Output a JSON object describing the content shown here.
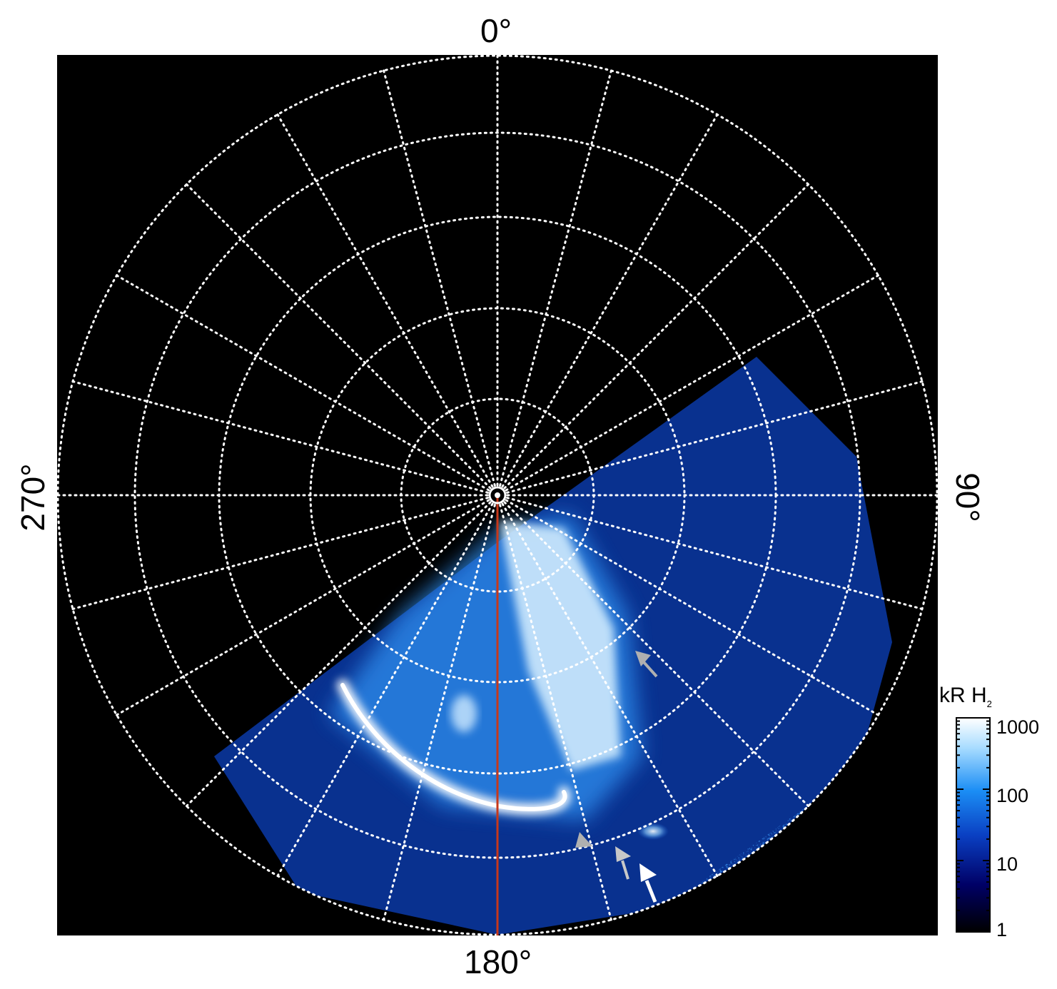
{
  "chart_data": {
    "type": "heatmap",
    "projection": "polar",
    "background": "#000000",
    "longitude_labels": {
      "top": "0°",
      "right": "90°",
      "bottom": "180°",
      "left": "270°"
    },
    "grid": true,
    "grid_color": "#ffffff",
    "meridian_step_deg": 15,
    "colorbar": {
      "title": "kR H",
      "title_subscript": "2",
      "scale": "log",
      "range": [
        1,
        1000
      ],
      "ticks": [
        "1000",
        "100",
        "10",
        "1"
      ],
      "colors": [
        "#000000",
        "#000066",
        "#0a3fc2",
        "#1b8ef5",
        "#a8dcff",
        "#ffffff"
      ]
    },
    "reference_line": {
      "longitude_deg": 180,
      "color": "#c8381a"
    },
    "arrows": [
      {
        "color": "#b0b0b0"
      },
      {
        "color": "#b0b0b0"
      },
      {
        "color": "#c8c8c8"
      },
      {
        "color": "#ffffff"
      }
    ]
  }
}
